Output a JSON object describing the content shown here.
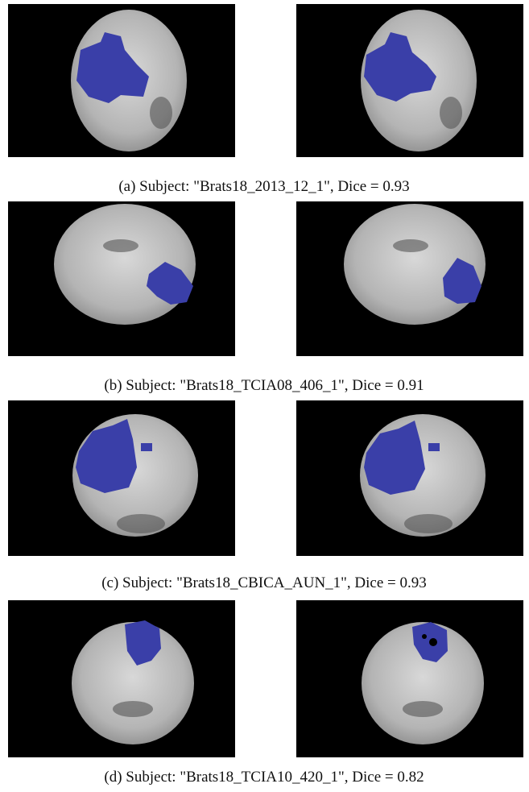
{
  "figure": {
    "captions": [
      "(a) Subject: \"Brats18_2013_12_1\", Dice = 0.93",
      "(b) Subject: \"Brats18_TCIA08_406_1\", Dice = 0.91",
      "(c) Subject: \"Brats18_CBICA_AUN_1\", Dice = 0.93",
      "(d) Subject: \"Brats18_TCIA10_420_1\", Dice = 0.82"
    ]
  }
}
